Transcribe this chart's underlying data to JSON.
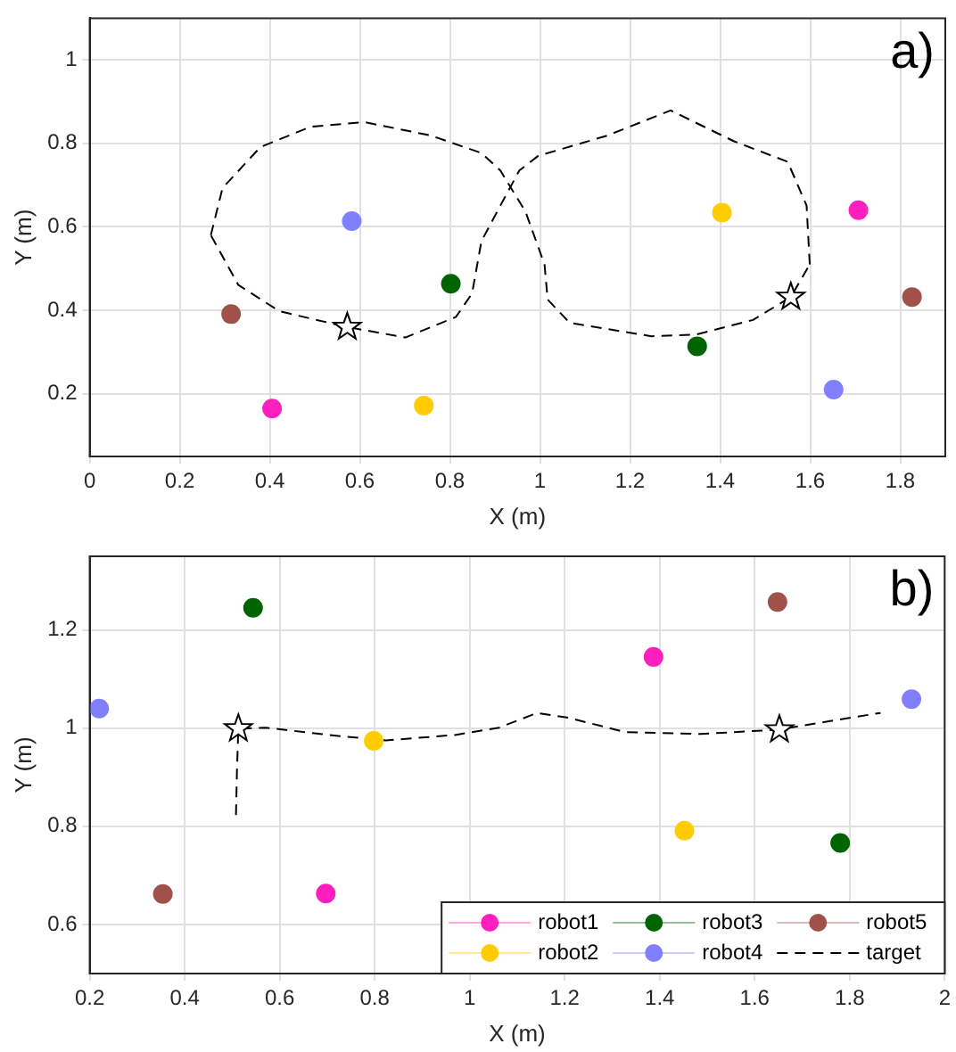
{
  "chart_data": [
    {
      "type": "scatter",
      "xlabel": "X (m)",
      "ylabel": "Y (m)",
      "xlim": [
        0,
        1.9
      ],
      "ylim": [
        0.05,
        1.1
      ],
      "xticks": [
        0,
        0.2,
        0.4,
        0.6,
        0.8,
        1,
        1.2,
        1.4,
        1.6,
        1.8
      ],
      "yticks": [
        0.2,
        0.4,
        0.6,
        0.8,
        1
      ],
      "grid": true,
      "legend": false,
      "marker": "circle",
      "annotations": [
        "a)"
      ],
      "series": [
        {
          "color": "#ff1fbf",
          "x": [
            0.405,
            1.707
          ],
          "values": [
            0.165,
            0.64
          ]
        },
        {
          "color": "#ffcc00",
          "x": [
            0.742,
            1.404
          ],
          "values": [
            0.172,
            0.634
          ]
        },
        {
          "color": "#006400",
          "x": [
            0.802,
            1.349
          ],
          "values": [
            0.464,
            0.314
          ]
        },
        {
          "color": "#8080ff",
          "x": [
            0.582,
            1.652
          ],
          "values": [
            0.614,
            0.21
          ]
        },
        {
          "color": "#a0524a",
          "x": [
            0.314,
            1.826
          ],
          "values": [
            0.391,
            0.432
          ]
        },
        {
          "type": "line",
          "color": "#000000",
          "line_style": "dashed",
          "marker": "none",
          "x": [
            0.269,
            0.295,
            0.379,
            0.491,
            0.61,
            0.757,
            0.87,
            0.912,
            0.968,
            1.01,
            1.017,
            1.066,
            1.248,
            1.346,
            1.473,
            1.557,
            1.599
          ],
          "values": [
            0.58,
            0.693,
            0.791,
            0.84,
            0.851,
            0.819,
            0.777,
            0.735,
            0.636,
            0.51,
            0.426,
            0.37,
            0.338,
            0.342,
            0.377,
            0.432,
            0.51
          ]
        },
        {
          "type": "line",
          "color": "#000000",
          "line_style": "dashed",
          "marker": "none",
          "x": [
            1.599,
            1.592,
            1.55,
            1.431,
            1.29,
            1.15,
            0.996,
            0.954,
            0.912,
            0.87,
            0.849,
            0.813,
            0.701,
            0.572,
            0.421,
            0.33,
            0.269
          ],
          "values": [
            0.51,
            0.651,
            0.756,
            0.805,
            0.879,
            0.819,
            0.77,
            0.735,
            0.651,
            0.566,
            0.44,
            0.384,
            0.335,
            0.36,
            0.398,
            0.461,
            0.58
          ]
        },
        {
          "color": "#000000",
          "marker": "star",
          "x": [
            0.572,
            1.557
          ],
          "values": [
            0.36,
            0.432
          ]
        }
      ]
    },
    {
      "type": "scatter",
      "xlabel": "X (m)",
      "ylabel": "Y (m)",
      "xlim": [
        0.2,
        2
      ],
      "ylim": [
        0.5,
        1.35
      ],
      "xticks": [
        0.2,
        0.4,
        0.6,
        0.8,
        1,
        1.2,
        1.4,
        1.6,
        1.8,
        2
      ],
      "yticks": [
        0.6,
        0.8,
        1,
        1.2
      ],
      "grid": true,
      "legend": "bottom right",
      "marker": "circle",
      "annotations": [
        "b)"
      ],
      "series": [
        {
          "name": "robot1",
          "color": "#ff1fbf",
          "x": [
            1.387,
            0.697
          ],
          "values": [
            1.145,
            0.663
          ]
        },
        {
          "name": "robot2",
          "color": "#ffcc00",
          "x": [
            0.798,
            1.452
          ],
          "values": [
            0.974,
            0.791
          ]
        },
        {
          "name": "robot3",
          "color": "#006400",
          "x": [
            0.544,
            1.78
          ],
          "values": [
            1.245,
            0.766
          ]
        },
        {
          "name": "robot4",
          "color": "#8080ff",
          "x": [
            0.22,
            1.93
          ],
          "values": [
            1.04,
            1.059
          ]
        },
        {
          "name": "robot5",
          "color": "#a0524a",
          "x": [
            0.354,
            1.648
          ],
          "values": [
            0.662,
            1.257
          ]
        },
        {
          "name": "target",
          "type": "line",
          "color": "#000000",
          "line_style": "dashed",
          "marker": "none",
          "x": [
            0.508,
            0.51,
            0.513,
            0.571,
            0.704,
            0.823,
            0.969,
            1.062,
            1.142,
            1.208,
            1.327,
            1.487,
            1.652,
            1.725,
            1.865
          ],
          "values": [
            0.823,
            0.911,
            0.999,
            1.001,
            0.986,
            0.975,
            0.986,
            1.001,
            1.031,
            1.021,
            0.992,
            0.988,
            0.997,
            1.009,
            1.031
          ]
        },
        {
          "color": "#000000",
          "marker": "star",
          "x": [
            0.513,
            1.652
          ],
          "values": [
            0.999,
            0.997
          ]
        }
      ]
    }
  ]
}
